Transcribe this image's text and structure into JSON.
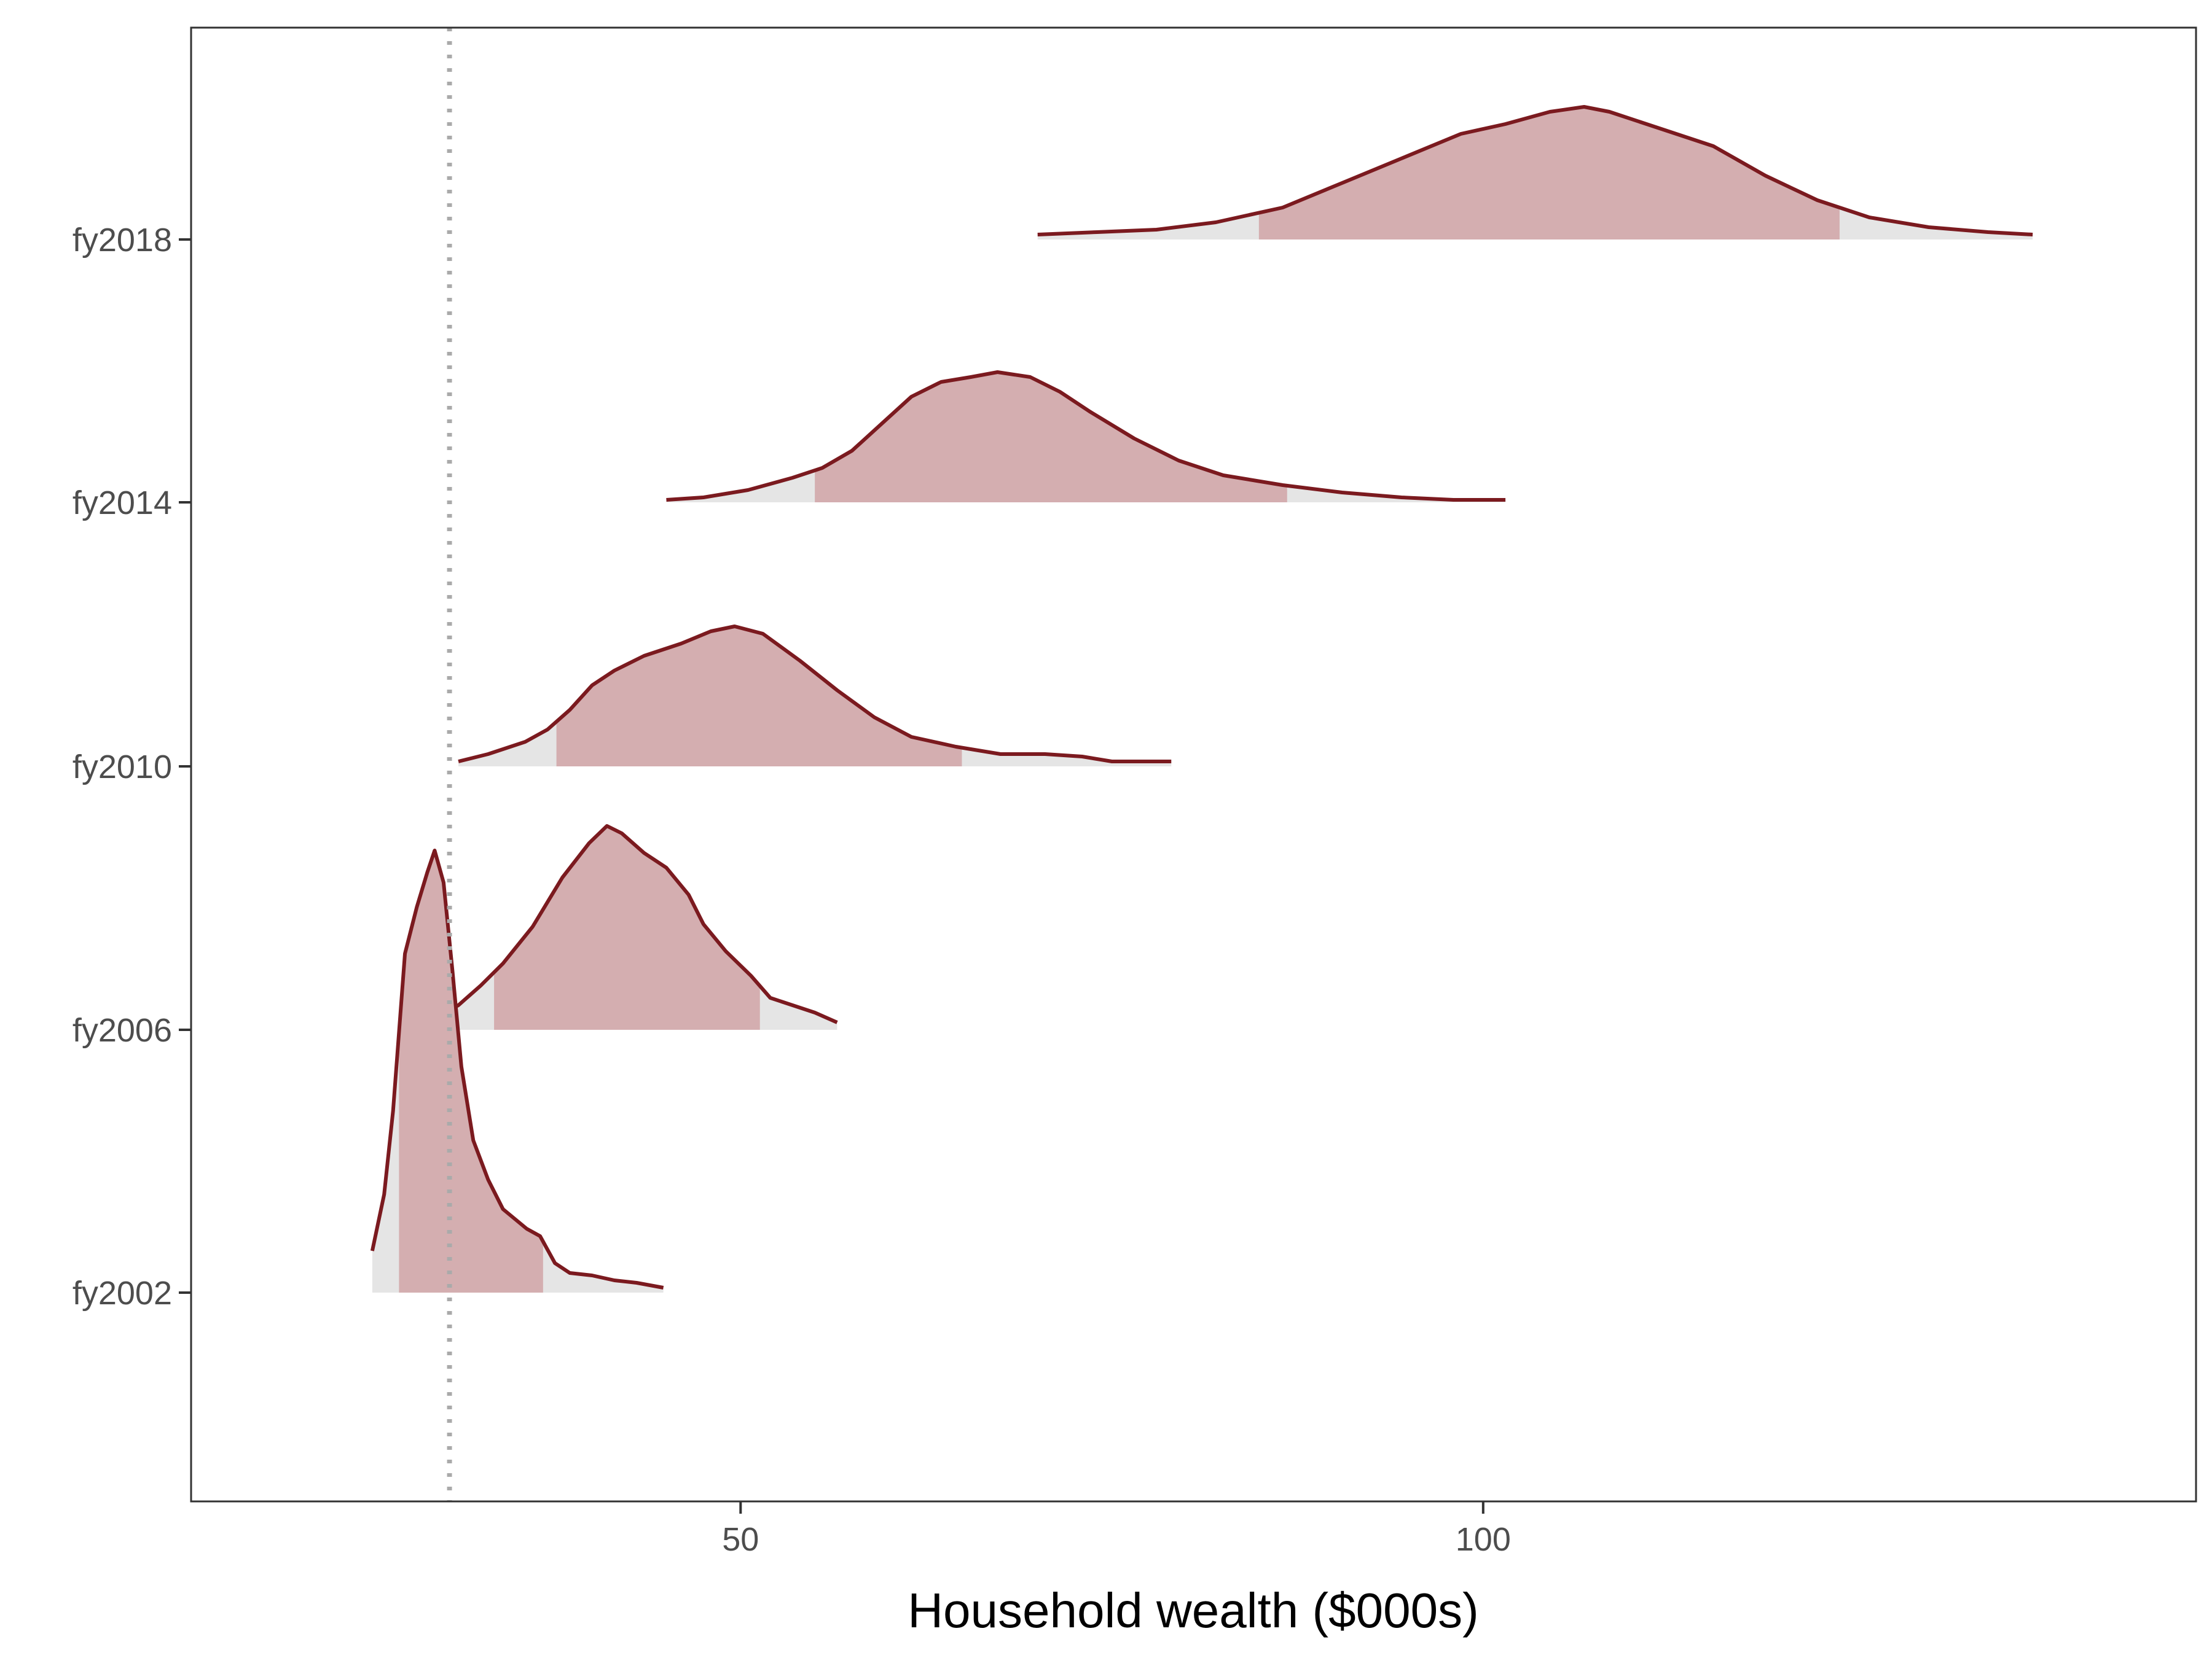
{
  "chart_data": {
    "type": "ridgeline",
    "title": "",
    "xlabel": "Household wealth ($000s)",
    "ylabel": "",
    "xlim": [
      13,
      148
    ],
    "x_ticks": [
      50,
      100
    ],
    "reference_line": {
      "x": 30.4,
      "style": "dotted",
      "color": "#aaaaaa"
    },
    "colors": {
      "line": "#7b1a1f",
      "band": "#d4aeb0",
      "tail": "#e5e5e5"
    },
    "grid": false,
    "legend": "none",
    "categories": [
      "fy2002",
      "fy2006",
      "fy2010",
      "fy2014",
      "fy2018"
    ],
    "series": [
      {
        "category": "fy2002",
        "band": [
          27.0,
          36.7
        ],
        "density": [
          [
            25.2,
            0.17
          ],
          [
            26.0,
            0.4
          ],
          [
            26.6,
            0.74
          ],
          [
            27.4,
            1.38
          ],
          [
            28.2,
            1.57
          ],
          [
            28.9,
            1.71
          ],
          [
            29.4,
            1.8
          ],
          [
            30.0,
            1.67
          ],
          [
            30.6,
            1.31
          ],
          [
            31.2,
            0.92
          ],
          [
            32.0,
            0.62
          ],
          [
            33.0,
            0.46
          ],
          [
            34.0,
            0.34
          ],
          [
            35.0,
            0.29
          ],
          [
            35.6,
            0.26
          ],
          [
            36.5,
            0.23
          ],
          [
            37.5,
            0.12
          ],
          [
            38.5,
            0.08
          ],
          [
            40.0,
            0.07
          ],
          [
            41.5,
            0.05
          ],
          [
            43.0,
            0.04
          ],
          [
            44.8,
            0.02
          ]
        ]
      },
      {
        "category": "fy2006",
        "band": [
          33.4,
          51.3
        ],
        "density": [
          [
            27.0,
            0.02
          ],
          [
            29.5,
            0.05
          ],
          [
            31.0,
            0.1
          ],
          [
            32.5,
            0.18
          ],
          [
            34.0,
            0.27
          ],
          [
            36.0,
            0.42
          ],
          [
            38.0,
            0.62
          ],
          [
            39.8,
            0.76
          ],
          [
            41.0,
            0.83
          ],
          [
            42.0,
            0.8
          ],
          [
            43.5,
            0.72
          ],
          [
            45.0,
            0.66
          ],
          [
            46.5,
            0.55
          ],
          [
            47.5,
            0.43
          ],
          [
            49.0,
            0.32
          ],
          [
            50.7,
            0.22
          ],
          [
            52.0,
            0.13
          ],
          [
            53.5,
            0.1
          ],
          [
            55.0,
            0.07
          ],
          [
            56.5,
            0.03
          ]
        ]
      },
      {
        "category": "fy2010",
        "band": [
          37.6,
          64.9
        ],
        "density": [
          [
            31.0,
            0.02
          ],
          [
            33.0,
            0.05
          ],
          [
            35.5,
            0.1
          ],
          [
            37.0,
            0.15
          ],
          [
            38.5,
            0.23
          ],
          [
            40.0,
            0.33
          ],
          [
            41.5,
            0.39
          ],
          [
            43.5,
            0.45
          ],
          [
            46.0,
            0.5
          ],
          [
            48.0,
            0.55
          ],
          [
            49.6,
            0.57
          ],
          [
            51.5,
            0.54
          ],
          [
            54.0,
            0.43
          ],
          [
            56.5,
            0.31
          ],
          [
            59.0,
            0.2
          ],
          [
            61.5,
            0.12
          ],
          [
            64.5,
            0.08
          ],
          [
            67.5,
            0.05
          ],
          [
            70.5,
            0.05
          ],
          [
            73.0,
            0.04
          ],
          [
            75.0,
            0.02
          ],
          [
            79.0,
            0.02
          ]
        ]
      },
      {
        "category": "fy2014",
        "band": [
          55.0,
          86.8
        ],
        "density": [
          [
            45.0,
            0.01
          ],
          [
            47.5,
            0.02
          ],
          [
            50.5,
            0.05
          ],
          [
            53.5,
            0.1
          ],
          [
            55.5,
            0.14
          ],
          [
            57.5,
            0.21
          ],
          [
            59.5,
            0.32
          ],
          [
            61.5,
            0.43
          ],
          [
            63.5,
            0.49
          ],
          [
            65.5,
            0.51
          ],
          [
            67.3,
            0.53
          ],
          [
            69.5,
            0.51
          ],
          [
            71.5,
            0.45
          ],
          [
            73.5,
            0.37
          ],
          [
            76.5,
            0.26
          ],
          [
            79.5,
            0.17
          ],
          [
            82.5,
            0.11
          ],
          [
            86.5,
            0.07
          ],
          [
            90.5,
            0.04
          ],
          [
            94.5,
            0.02
          ],
          [
            98.0,
            0.01
          ],
          [
            101.5,
            0.01
          ]
        ]
      },
      {
        "category": "fy2018",
        "band": [
          84.9,
          124.0
        ],
        "density": [
          [
            70.0,
            0.02
          ],
          [
            74.0,
            0.03
          ],
          [
            78.0,
            0.04
          ],
          [
            82.0,
            0.07
          ],
          [
            86.5,
            0.13
          ],
          [
            90.5,
            0.23
          ],
          [
            94.5,
            0.33
          ],
          [
            98.5,
            0.43
          ],
          [
            101.5,
            0.47
          ],
          [
            104.5,
            0.52
          ],
          [
            106.8,
            0.54
          ],
          [
            108.5,
            0.52
          ],
          [
            112.0,
            0.45
          ],
          [
            115.5,
            0.38
          ],
          [
            119.0,
            0.26
          ],
          [
            122.5,
            0.16
          ],
          [
            126.0,
            0.09
          ],
          [
            130.0,
            0.05
          ],
          [
            134.0,
            0.03
          ],
          [
            137.0,
            0.02
          ]
        ]
      }
    ]
  }
}
